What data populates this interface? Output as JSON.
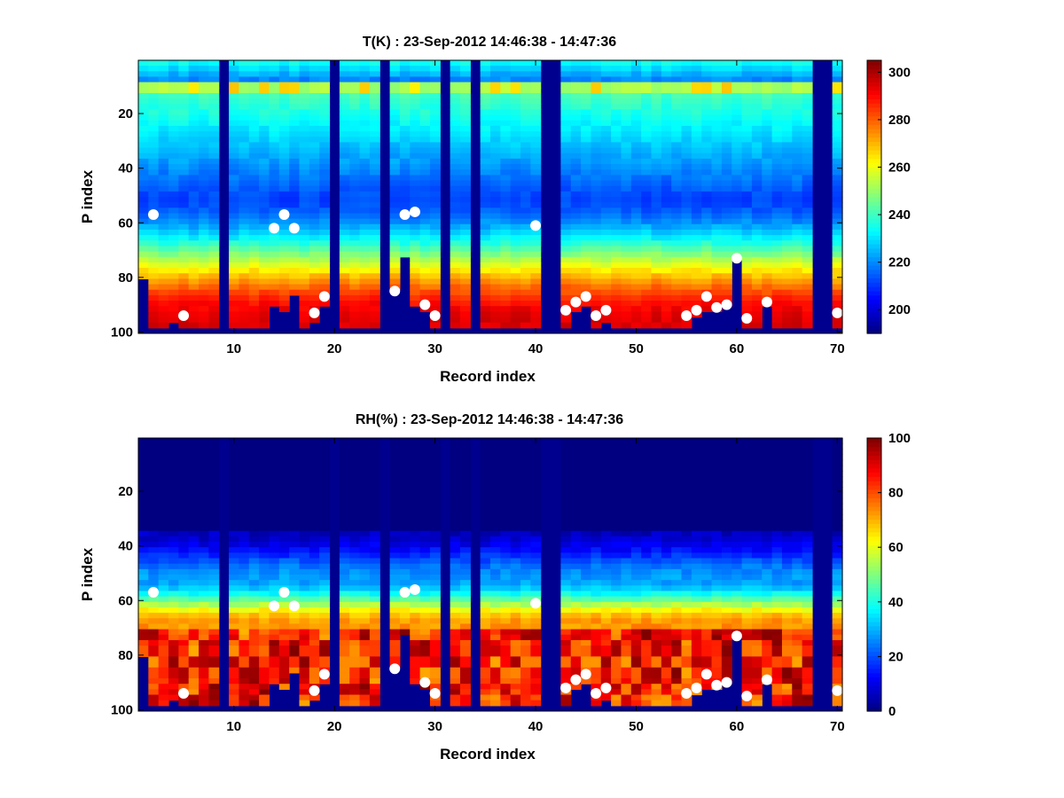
{
  "chart_data": [
    {
      "type": "heatmap",
      "title": "T(K) : 23-Sep-2012 14:46:38 - 14:47:36",
      "xlabel": "Record index",
      "ylabel": "P index",
      "xlim": [
        0.5,
        70.5
      ],
      "ylim": [
        0.5,
        100.5
      ],
      "y_reversed": true,
      "xticks": [
        10,
        20,
        30,
        40,
        50,
        60,
        70
      ],
      "yticks": [
        20,
        40,
        60,
        80,
        100
      ],
      "colormap": "jet",
      "clim": [
        190,
        305
      ],
      "colorbar_ticks": [
        200,
        220,
        240,
        260,
        280,
        300
      ],
      "masked_value_color": "#00008f",
      "profile_base_pressure_index": [
        81,
        98,
        98,
        96,
        98,
        98,
        98,
        98,
        1,
        98,
        98,
        98,
        98,
        90,
        92,
        86,
        98,
        96,
        90,
        1,
        98,
        98,
        98,
        98,
        1,
        85,
        72,
        90,
        92,
        98,
        1,
        98,
        98,
        1,
        98,
        98,
        98,
        98,
        98,
        98,
        1,
        1,
        98,
        93,
        90,
        98,
        96,
        98,
        98,
        98,
        98,
        98,
        98,
        98,
        98,
        94,
        92,
        92,
        90,
        73,
        98,
        98,
        90,
        98,
        98,
        98,
        98,
        1,
        1,
        98
      ],
      "surface_markers": {
        "record": [
          2,
          5,
          14,
          15,
          16,
          18,
          19,
          26,
          27,
          28,
          29,
          30,
          40,
          43,
          44,
          45,
          46,
          47,
          55,
          56,
          57,
          58,
          59,
          60,
          61,
          63,
          70
        ],
        "p_index": [
          57,
          94,
          62,
          57,
          62,
          93,
          87,
          85,
          57,
          56,
          90,
          94,
          61,
          92,
          89,
          87,
          94,
          92,
          94,
          92,
          87,
          91,
          90,
          73,
          95,
          89,
          93
        ]
      }
    },
    {
      "type": "heatmap",
      "title": "RH(%) : 23-Sep-2012 14:46:38 - 14:47:36",
      "xlabel": "Record index",
      "ylabel": "P index",
      "xlim": [
        0.5,
        70.5
      ],
      "ylim": [
        0.5,
        100.5
      ],
      "y_reversed": true,
      "xticks": [
        10,
        20,
        30,
        40,
        50,
        60,
        70
      ],
      "yticks": [
        20,
        40,
        60,
        80,
        100
      ],
      "colormap": "jet",
      "clim": [
        0,
        100
      ],
      "colorbar_ticks": [
        0,
        20,
        40,
        60,
        80,
        100
      ],
      "masked_value_color": "#00008f",
      "profile_base_pressure_index": [
        81,
        98,
        98,
        96,
        98,
        98,
        98,
        98,
        1,
        98,
        98,
        98,
        98,
        90,
        92,
        86,
        98,
        96,
        90,
        1,
        98,
        98,
        98,
        98,
        1,
        85,
        72,
        90,
        92,
        98,
        1,
        98,
        98,
        1,
        98,
        98,
        98,
        98,
        98,
        98,
        1,
        1,
        98,
        93,
        90,
        98,
        96,
        98,
        98,
        98,
        98,
        98,
        98,
        98,
        98,
        94,
        92,
        92,
        90,
        73,
        98,
        98,
        90,
        98,
        98,
        98,
        98,
        1,
        1,
        98
      ],
      "surface_markers": {
        "record": [
          2,
          5,
          14,
          15,
          16,
          18,
          19,
          26,
          27,
          28,
          29,
          30,
          40,
          43,
          44,
          45,
          46,
          47,
          55,
          56,
          57,
          58,
          59,
          60,
          61,
          63,
          70
        ],
        "p_index": [
          57,
          94,
          62,
          57,
          62,
          93,
          87,
          85,
          57,
          56,
          90,
          94,
          61,
          92,
          89,
          87,
          94,
          92,
          94,
          92,
          87,
          91,
          90,
          73,
          95,
          89,
          93
        ]
      }
    }
  ]
}
